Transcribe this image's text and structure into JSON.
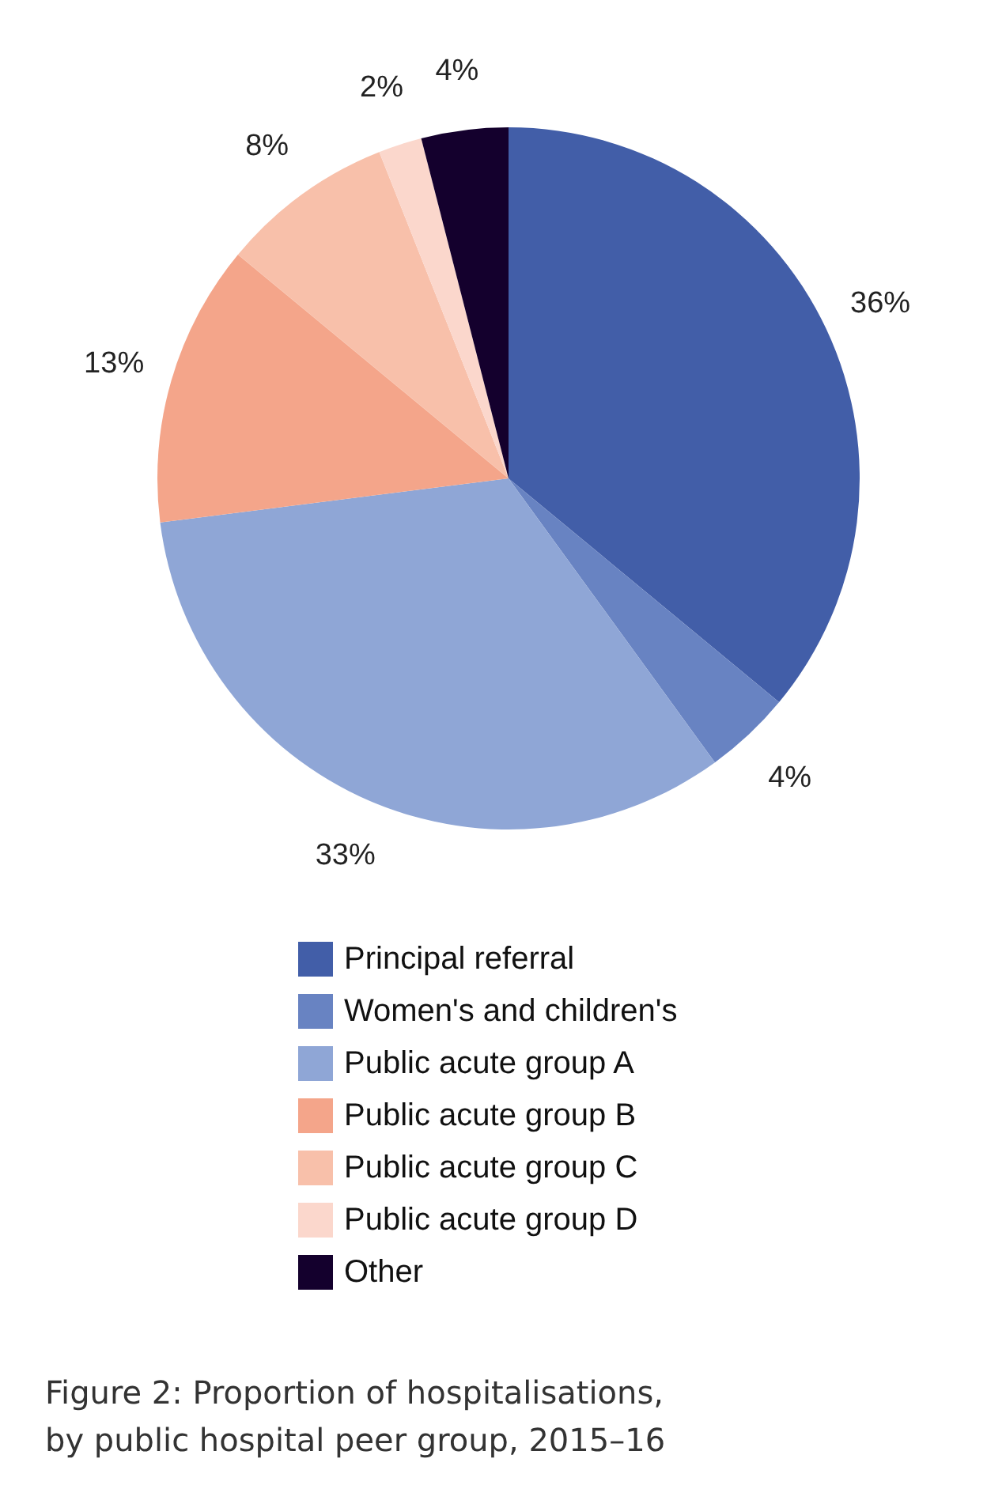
{
  "chart_data": {
    "type": "pie",
    "title": "Figure 2: Proportion of hospitalisations,\nby public hospital peer group, 2015–16",
    "categories": [
      "Principal referral",
      "Women's and children's",
      "Public acute group A",
      "Public acute group B",
      "Public acute group C",
      "Public acute group D",
      "Other"
    ],
    "values": [
      36,
      4,
      33,
      13,
      8,
      2,
      4
    ],
    "colors": [
      "#425ea8",
      "#6883c2",
      "#8fa6d6",
      "#f4a58a",
      "#f8c0aa",
      "#fbd7cc",
      "#14002d"
    ],
    "value_labels": [
      "36%",
      "4%",
      "33%",
      "13%",
      "8%",
      "2%",
      "4%"
    ],
    "legend": "bottom"
  }
}
